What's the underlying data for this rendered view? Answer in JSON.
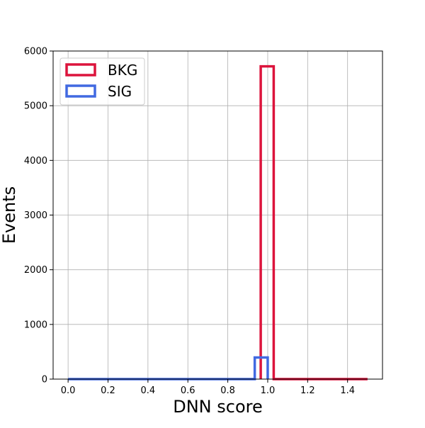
{
  "chart_data": {
    "type": "histogram",
    "xlabel": "DNN score",
    "ylabel": "Events",
    "xlim": [
      -0.075,
      1.575
    ],
    "ylim": [
      0,
      6000
    ],
    "xticks": [
      "0.0",
      "0.2",
      "0.4",
      "0.6",
      "0.8",
      "1.0",
      "1.2",
      "1.4"
    ],
    "xtick_values": [
      0.0,
      0.2,
      0.4,
      0.6,
      0.8,
      1.0,
      1.2,
      1.4
    ],
    "yticks": [
      "0",
      "1000",
      "2000",
      "3000",
      "4000",
      "5000",
      "6000"
    ],
    "ytick_values": [
      0,
      1000,
      2000,
      3000,
      4000,
      5000,
      6000
    ],
    "grid": true,
    "legend_position": "top-left",
    "series": [
      {
        "name": "BKG",
        "color": "#dc143c",
        "x_range": [
          0.0,
          1.5
        ],
        "bins": [
          {
            "x0": 0.965,
            "x1": 1.03,
            "value": 5720
          },
          {
            "x0": 1.03,
            "x1": 1.5,
            "value": 0
          }
        ]
      },
      {
        "name": "SIG",
        "color": "#4169e1",
        "x_range": [
          0.0,
          1.0
        ],
        "bins": [
          {
            "x0": 0.0,
            "x1": 0.935,
            "value": 0
          },
          {
            "x0": 0.935,
            "x1": 1.0,
            "value": 395
          }
        ]
      }
    ]
  }
}
